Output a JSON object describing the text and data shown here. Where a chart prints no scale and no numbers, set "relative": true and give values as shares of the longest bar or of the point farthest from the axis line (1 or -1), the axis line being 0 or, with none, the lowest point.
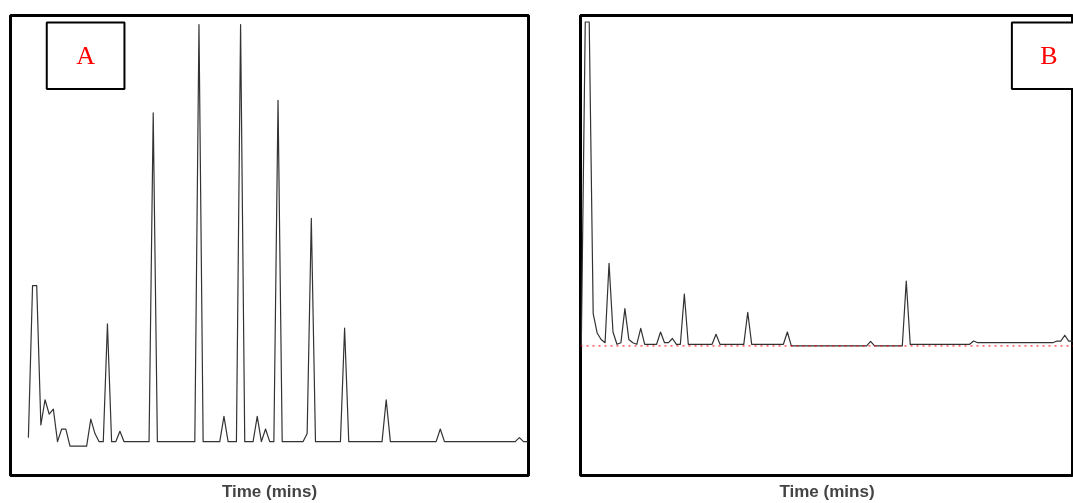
{
  "chart_data": [
    {
      "type": "line",
      "title": "A",
      "xlabel": "Time (mins)",
      "relative": true,
      "tick_labels": false,
      "grid": false,
      "marker": "none",
      "line_style": "solid",
      "categories": [
        null,
        null,
        null,
        null,
        null,
        null,
        null,
        null,
        null,
        null,
        null,
        null,
        null,
        null,
        null,
        null,
        null,
        null,
        null,
        null,
        null,
        null,
        null,
        null,
        null,
        null,
        null,
        null,
        null,
        null,
        null,
        null,
        null,
        null,
        null,
        null,
        null,
        null,
        null,
        null,
        null,
        null,
        null,
        null,
        null,
        null,
        null,
        null,
        null,
        null,
        null,
        null,
        null,
        null,
        null,
        null,
        null,
        null,
        null,
        null,
        null,
        null,
        null,
        null,
        null,
        null,
        null,
        null,
        null,
        null,
        null,
        null,
        null,
        null,
        null,
        null,
        null,
        null,
        null,
        null,
        null,
        null,
        null,
        null,
        null,
        null,
        null,
        null,
        null,
        null,
        null,
        null,
        null,
        null,
        null,
        null,
        null,
        null,
        null,
        null,
        null,
        null,
        null,
        null,
        null,
        null,
        null,
        null,
        null,
        null,
        null,
        null,
        null,
        null,
        null,
        null,
        null,
        null,
        null,
        null,
        null
      ],
      "series": [
        {
          "color": "#333333",
          "values": [
            0.084,
            0.421,
            0.421,
            0.112,
            0.168,
            0.136,
            0.147,
            0.075,
            0.103,
            0.103,
            0.065,
            0.065,
            0.065,
            0.065,
            0.065,
            0.125,
            0.093,
            0.075,
            0.075,
            0.336,
            0.075,
            0.075,
            0.098,
            0.075,
            0.075,
            0.075,
            0.075,
            0.075,
            0.075,
            0.075,
            0.804,
            0.075,
            0.075,
            0.075,
            0.075,
            0.075,
            0.075,
            0.075,
            0.075,
            0.075,
            0.075,
            1.0,
            0.075,
            0.075,
            0.075,
            0.075,
            0.075,
            0.131,
            0.075,
            0.075,
            0.075,
            1.0,
            0.075,
            0.075,
            0.075,
            0.131,
            0.075,
            0.103,
            0.075,
            0.075,
            0.832,
            0.075,
            0.075,
            0.075,
            0.075,
            0.075,
            0.075,
            0.093,
            0.57,
            0.075,
            0.075,
            0.075,
            0.075,
            0.075,
            0.075,
            0.075,
            0.327,
            0.075,
            0.075,
            0.075,
            0.075,
            0.075,
            0.075,
            0.075,
            0.075,
            0.075,
            0.168,
            0.075,
            0.075,
            0.075,
            0.075,
            0.075,
            0.075,
            0.075,
            0.075,
            0.075,
            0.075,
            0.075,
            0.075,
            0.103,
            0.075,
            0.075,
            0.075,
            0.075,
            0.075,
            0.075,
            0.075,
            0.075,
            0.075,
            0.075,
            0.075,
            0.075,
            0.075,
            0.075,
            0.075,
            0.075,
            0.075,
            0.075,
            0.084,
            0.075,
            0.075
          ]
        }
      ]
    },
    {
      "type": "line",
      "title": "B",
      "xlabel": "Time (mins)",
      "relative": true,
      "tick_labels": false,
      "grid": false,
      "marker": "none",
      "line_style": "solid",
      "ref_lines": [
        {
          "axis": "y",
          "value": 0,
          "color": "#ff0000",
          "line_style": "dotted"
        }
      ],
      "categories": [
        null,
        null,
        null,
        null,
        null,
        null,
        null,
        null,
        null,
        null,
        null,
        null,
        null,
        null,
        null,
        null,
        null,
        null,
        null,
        null,
        null,
        null,
        null,
        null,
        null,
        null,
        null,
        null,
        null,
        null,
        null,
        null,
        null,
        null,
        null,
        null,
        null,
        null,
        null,
        null,
        null,
        null,
        null,
        null,
        null,
        null,
        null,
        null,
        null,
        null,
        null,
        null,
        null,
        null,
        null,
        null,
        null,
        null,
        null,
        null,
        null,
        null,
        null,
        null,
        null,
        null,
        null,
        null,
        null,
        null,
        null,
        null,
        null,
        null,
        null,
        null,
        null,
        null,
        null,
        null,
        null,
        null,
        null,
        null,
        null,
        null,
        null,
        null,
        null,
        null,
        null,
        null,
        null,
        null,
        null,
        null,
        null,
        null,
        null,
        null,
        null,
        null,
        null,
        null,
        null,
        null,
        null,
        null,
        null,
        null,
        null,
        null,
        null,
        null,
        null,
        null,
        null,
        null,
        null,
        null,
        null,
        null,
        null,
        null,
        null
      ],
      "series": [
        {
          "color": "#333333",
          "values": [
            0,
            1.0,
            1.0,
            0.1,
            0.04,
            0.02,
            0.01,
            0.255,
            0.043,
            0.005,
            0.01,
            0.115,
            0.02,
            0.01,
            0.005,
            0.054,
            0.005,
            0.005,
            0.005,
            0.005,
            0.043,
            0.01,
            0.01,
            0.023,
            0.005,
            0.005,
            0.16,
            0.005,
            0.005,
            0.005,
            0.005,
            0.005,
            0.005,
            0.005,
            0.036,
            0.005,
            0.005,
            0.005,
            0.005,
            0.005,
            0.005,
            0.005,
            0.104,
            0.005,
            0.005,
            0.005,
            0.005,
            0.005,
            0.005,
            0.005,
            0.005,
            0.005,
            0.043,
            0,
            0,
            0,
            0,
            0,
            0,
            0,
            0,
            0,
            0,
            0,
            0,
            0,
            0,
            0,
            0,
            0,
            0,
            0,
            0,
            0.014,
            0,
            0,
            0,
            0,
            0,
            0,
            0,
            0,
            0.2,
            0.005,
            0.005,
            0.005,
            0.005,
            0.005,
            0.005,
            0.005,
            0.005,
            0.005,
            0.005,
            0.005,
            0.005,
            0.005,
            0.005,
            0.005,
            0.005,
            0.015,
            0.01,
            0.01,
            0.01,
            0.01,
            0.01,
            0.01,
            0.01,
            0.01,
            0.01,
            0.01,
            0.01,
            0.01,
            0.01,
            0.01,
            0.01,
            0.01,
            0.01,
            0.01,
            0.01,
            0.01,
            0.015,
            0.015,
            0.033,
            0.015,
            0.015
          ]
        }
      ]
    }
  ]
}
